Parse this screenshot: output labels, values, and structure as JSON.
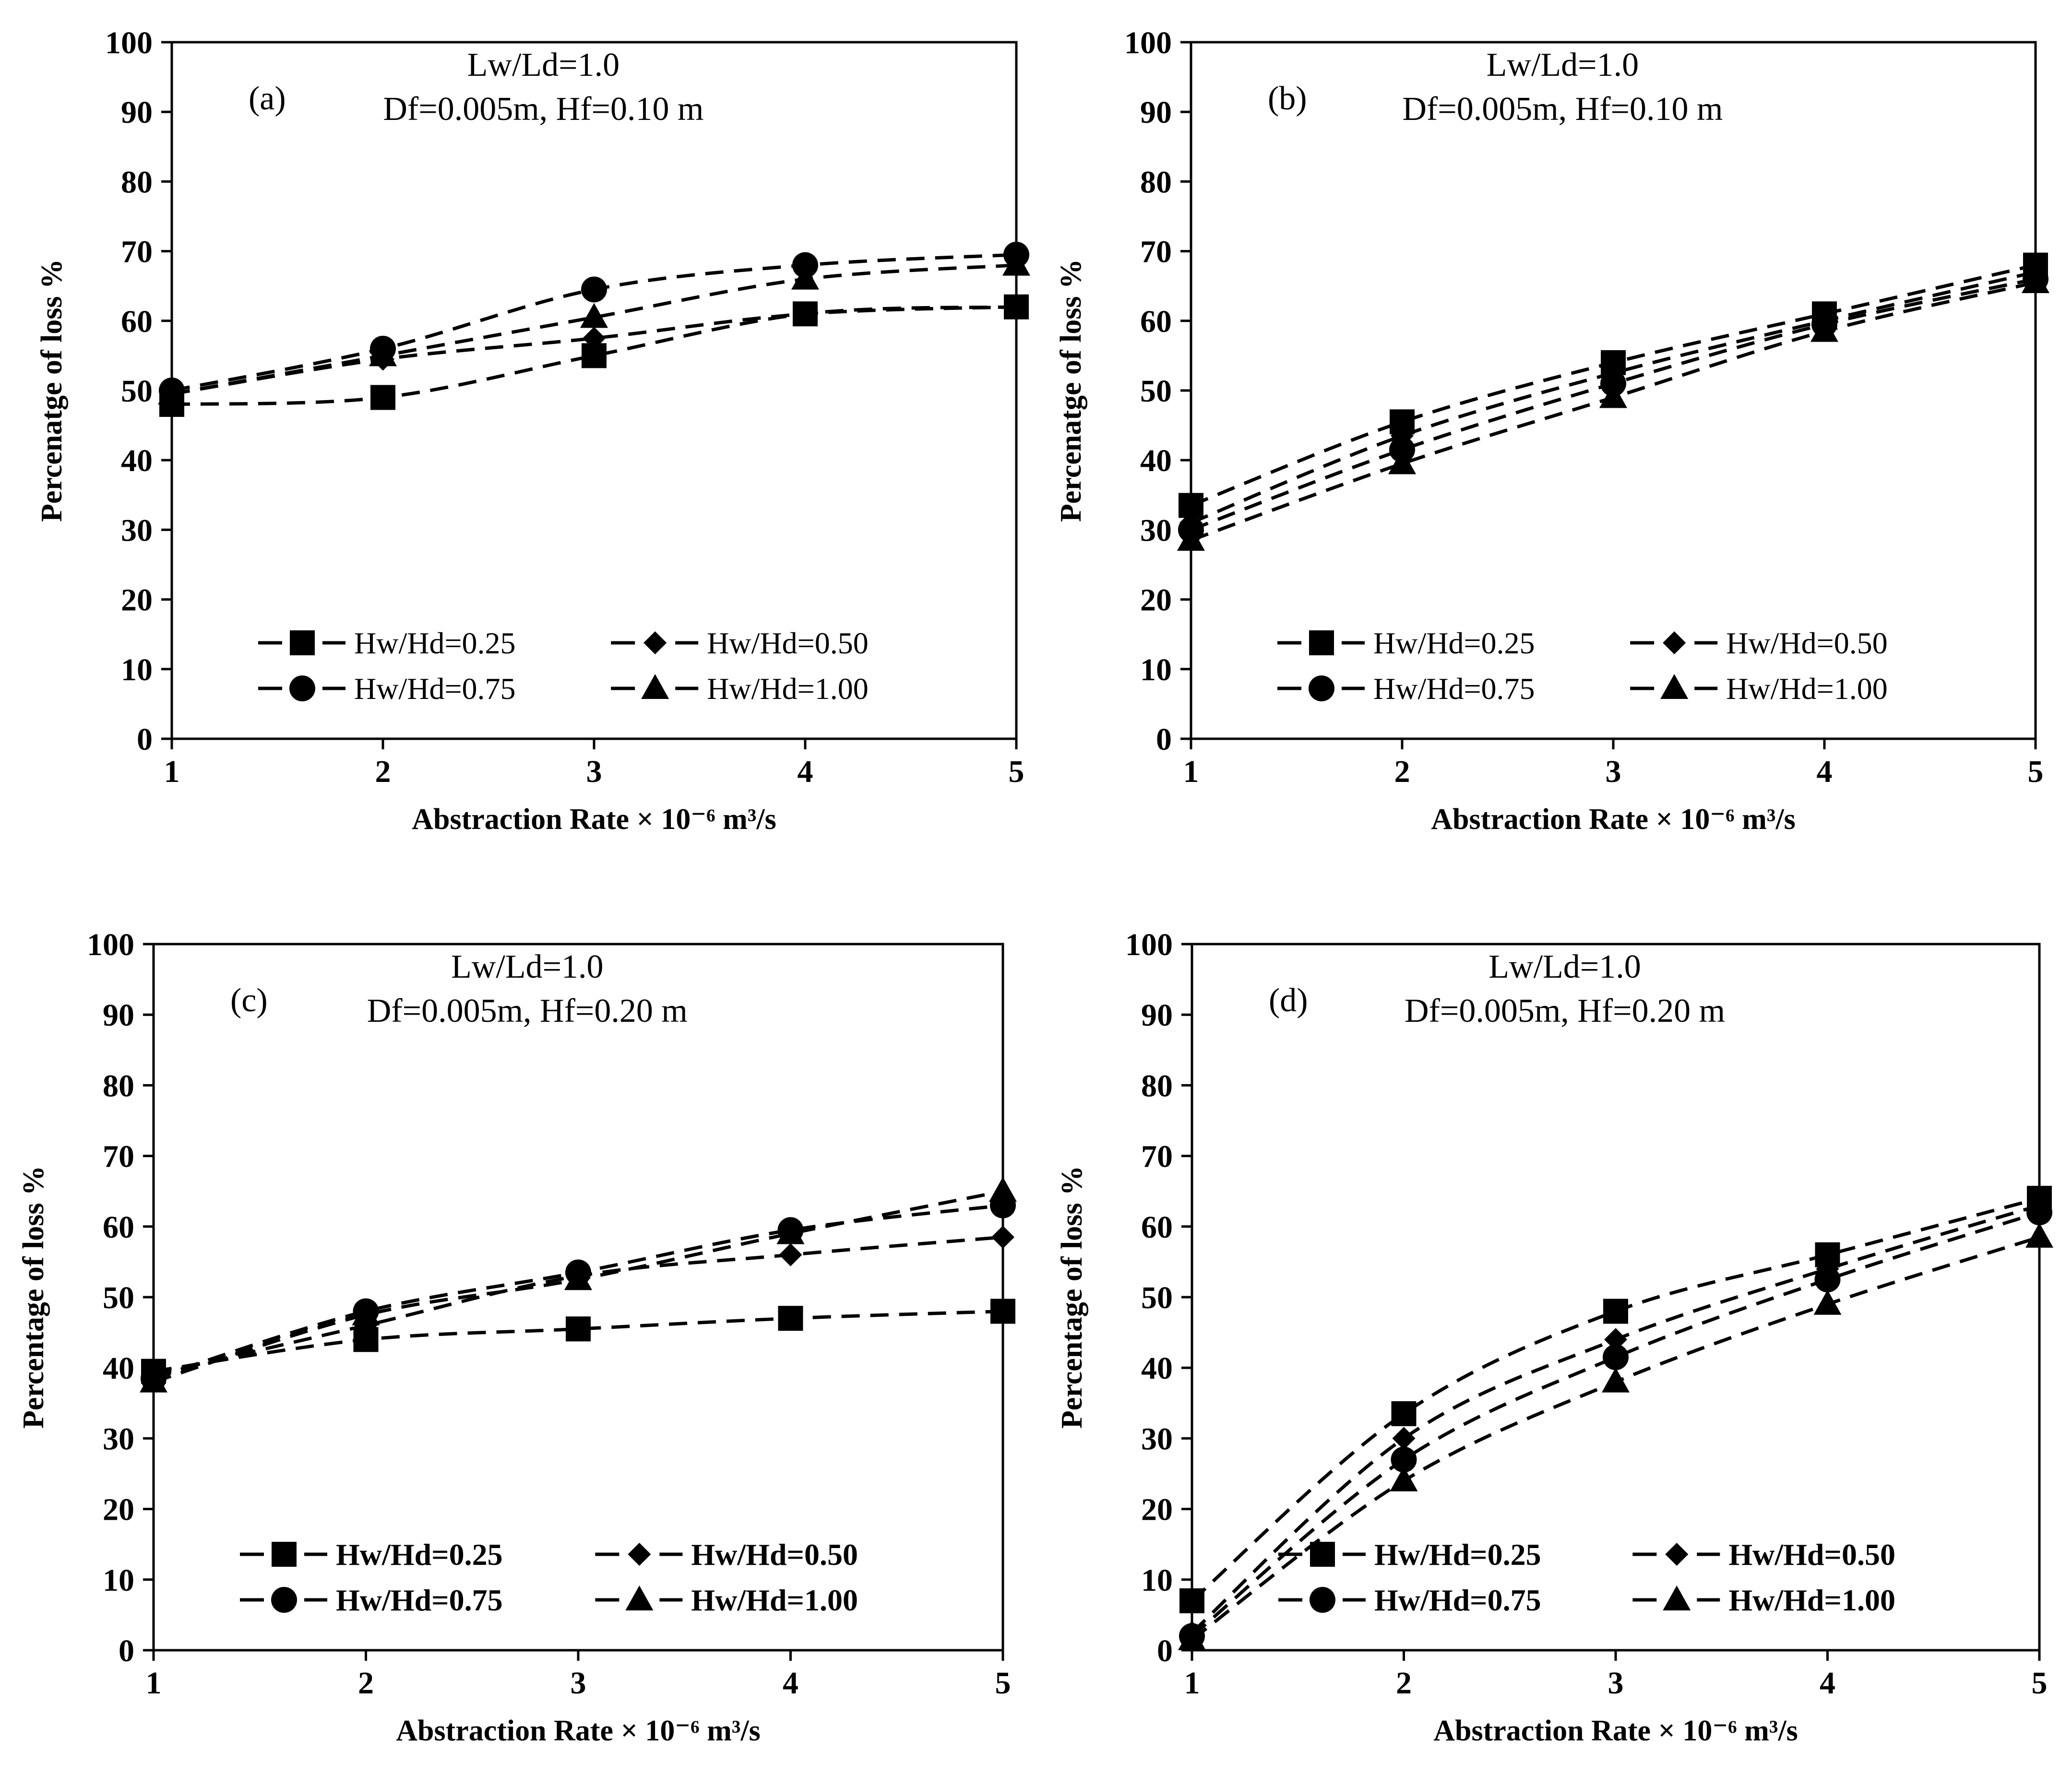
{
  "figure": {
    "background": "#ffffff",
    "line_color": "#000000"
  },
  "chart_data": [
    {
      "type": "line",
      "panel_label": "(a)",
      "annotations": [
        "Lw/Ld=1.0",
        "Df=0.005m, Hf=0.10 m"
      ],
      "xlabel": "Abstraction Rate × 10⁻⁶  m³/s",
      "ylabel": "Percenatge of loss %",
      "xlim": [
        1,
        5
      ],
      "ylim": [
        0,
        100
      ],
      "x_ticks": [
        "1",
        "2",
        "3",
        "4",
        "5"
      ],
      "y_ticks": [
        "0",
        "10",
        "20",
        "30",
        "40",
        "50",
        "60",
        "70",
        "80",
        "90",
        "100"
      ],
      "legend_bold": false,
      "x": [
        1,
        2,
        3,
        4,
        5
      ],
      "series": [
        {
          "name": "Hw/Hd=0.25",
          "marker": "square",
          "values": [
            48,
            49,
            55,
            61,
            62
          ]
        },
        {
          "name": "Hw/Hd=0.50",
          "marker": "diamond",
          "values": [
            49.5,
            54.5,
            57.5,
            61,
            62
          ]
        },
        {
          "name": "Hw/Hd=0.75",
          "marker": "circle",
          "values": [
            50,
            56,
            64.5,
            68,
            69.5
          ]
        },
        {
          "name": "Hw/Hd=1.00",
          "marker": "triangle",
          "values": [
            49.5,
            55,
            60.5,
            66,
            68
          ]
        }
      ]
    },
    {
      "type": "line",
      "panel_label": "(b)",
      "annotations": [
        "Lw/Ld=1.0",
        "Df=0.005m, Hf=0.10 m"
      ],
      "xlabel": "Abstraction Rate × 10⁻⁶  m³/s",
      "ylabel": "Percenatge of loss %",
      "xlim": [
        1,
        5
      ],
      "ylim": [
        0,
        100
      ],
      "x_ticks": [
        "1",
        "2",
        "3",
        "4",
        "5"
      ],
      "y_ticks": [
        "0",
        "10",
        "20",
        "30",
        "40",
        "50",
        "60",
        "70",
        "80",
        "90",
        "100"
      ],
      "legend_bold": false,
      "x": [
        1,
        2,
        3,
        4,
        5
      ],
      "series": [
        {
          "name": "Hw/Hd=0.25",
          "marker": "square",
          "values": [
            33.5,
            45.5,
            54,
            61,
            68
          ]
        },
        {
          "name": "Hw/Hd=0.50",
          "marker": "diamond",
          "values": [
            31,
            43.5,
            52.5,
            60,
            67
          ]
        },
        {
          "name": "Hw/Hd=0.75",
          "marker": "circle",
          "values": [
            30,
            41.5,
            51,
            59.5,
            66
          ]
        },
        {
          "name": "Hw/Hd=1.00",
          "marker": "triangle",
          "values": [
            28.5,
            39.5,
            49,
            58.5,
            65.5
          ]
        }
      ]
    },
    {
      "type": "line",
      "panel_label": "(c)",
      "annotations": [
        "Lw/Ld=1.0",
        "Df=0.005m, Hf=0.20 m"
      ],
      "xlabel": "Abstraction Rate × 10⁻⁶  m³/s",
      "ylabel": "Percentage of loss %",
      "xlim": [
        1,
        5
      ],
      "ylim": [
        0,
        100
      ],
      "x_ticks": [
        "1",
        "2",
        "3",
        "4",
        "5"
      ],
      "y_ticks": [
        "0",
        "10",
        "20",
        "30",
        "40",
        "50",
        "60",
        "70",
        "80",
        "90",
        "100"
      ],
      "legend_bold": true,
      "x": [
        1,
        2,
        3,
        4,
        5
      ],
      "series": [
        {
          "name": "Hw/Hd=0.25",
          "marker": "square",
          "values": [
            39.5,
            44,
            45.5,
            47,
            48
          ]
        },
        {
          "name": "Hw/Hd=0.50",
          "marker": "diamond",
          "values": [
            39,
            46,
            53,
            56,
            58.5
          ]
        },
        {
          "name": "Hw/Hd=0.75",
          "marker": "circle",
          "values": [
            38.5,
            48,
            53.5,
            59.5,
            63
          ]
        },
        {
          "name": "Hw/Hd=1.00",
          "marker": "triangle",
          "values": [
            38,
            47.5,
            52.5,
            59,
            65
          ]
        }
      ]
    },
    {
      "type": "line",
      "panel_label": "(d)",
      "annotations": [
        "Lw/Ld=1.0",
        "Df=0.005m, Hf=0.20 m"
      ],
      "xlabel": "Abstraction Rate × 10⁻⁶  m³/s",
      "ylabel": "Percentage of loss %",
      "xlim": [
        1,
        5
      ],
      "ylim": [
        0,
        100
      ],
      "x_ticks": [
        "1",
        "2",
        "3",
        "4",
        "5"
      ],
      "y_ticks": [
        "0",
        "10",
        "20",
        "30",
        "40",
        "50",
        "60",
        "70",
        "80",
        "90",
        "100"
      ],
      "legend_bold": true,
      "x": [
        1,
        2,
        3,
        4,
        5
      ],
      "series": [
        {
          "name": "Hw/Hd=0.25",
          "marker": "square",
          "values": [
            7,
            33.5,
            48,
            56,
            64
          ]
        },
        {
          "name": "Hw/Hd=0.50",
          "marker": "diamond",
          "values": [
            2.5,
            30,
            44,
            54,
            63
          ]
        },
        {
          "name": "Hw/Hd=0.75",
          "marker": "circle",
          "values": [
            2,
            27,
            41.5,
            52.5,
            62
          ]
        },
        {
          "name": "Hw/Hd=1.00",
          "marker": "triangle",
          "values": [
            1.5,
            24,
            38,
            49,
            58.5
          ]
        }
      ]
    }
  ]
}
